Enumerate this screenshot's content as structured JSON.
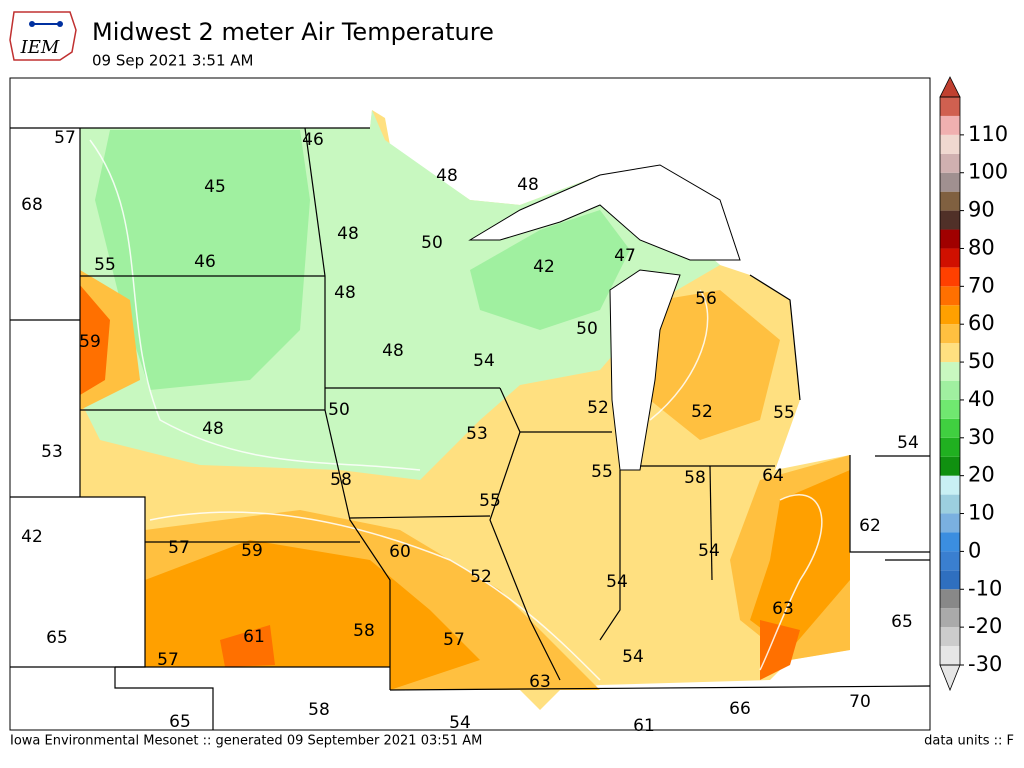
{
  "header": {
    "logo": "IEM",
    "title": "Midwest 2 meter Air Temperature",
    "subtitle": "09 Sep 2021 3:51 AM"
  },
  "stations": [
    57,
    46,
    45,
    68,
    48,
    48,
    48,
    50,
    55,
    46,
    42,
    47,
    48,
    56,
    59,
    50,
    48,
    54,
    52,
    52,
    55,
    50,
    48,
    53,
    53,
    54,
    58,
    55,
    58,
    64,
    55,
    62,
    42,
    57,
    59,
    60,
    54,
    52,
    54,
    63,
    65,
    65,
    61,
    58,
    57,
    54,
    57,
    63,
    70,
    66,
    58,
    65,
    54,
    61
  ],
  "colorbar": {
    "lim": [
      -30,
      120
    ],
    "ticks": [
      -30,
      -20,
      -10,
      0,
      10,
      20,
      30,
      40,
      50,
      60,
      70,
      80,
      90,
      100,
      110
    ],
    "colors": [
      "#e6e6e6",
      "#cccccc",
      "#aaaaaa",
      "#888888",
      "#2f6fbf",
      "#3a7fd0",
      "#3b8ee0",
      "#7ab0e0",
      "#9ccfdf",
      "#c8f0f4",
      "#109010",
      "#20b020",
      "#40d040",
      "#70e870",
      "#a0f0a0",
      "#c8f8c0",
      "#ffe080",
      "#ffc040",
      "#ffa000",
      "#ff7000",
      "#ff4000",
      "#d01000",
      "#a00000",
      "#503028",
      "#806040",
      "#a09090",
      "#d0b0b0",
      "#f0d8d0",
      "#f0b0b0",
      "#d06050"
    ],
    "over_color": "#c04030",
    "under_color": "#e6e6e6"
  },
  "footer": {
    "left": "Iowa Environmental Mesonet :: generated 09 September 2021 03:51 AM",
    "right": "data units :: F"
  }
}
